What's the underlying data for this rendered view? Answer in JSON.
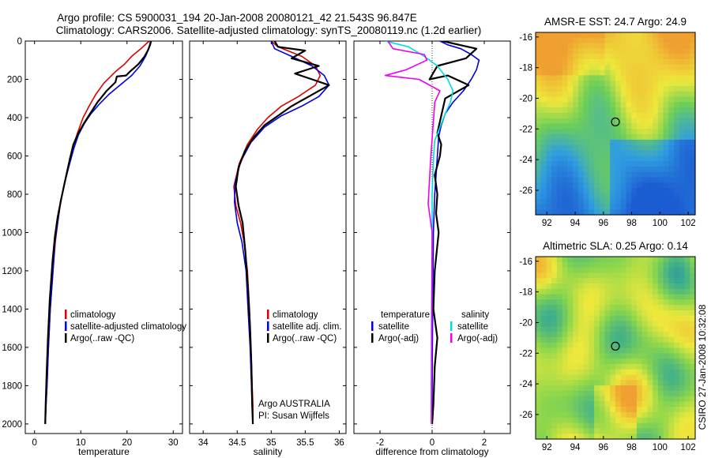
{
  "figure": {
    "title_line1": "Argo profile: CS 5900031_194 20-Jan-2008 20080121_42 21.543S 96.847E",
    "title_line2": "Climatology: CARS2006. Satellite-adjusted climatology: synTS_20080119.nc (1.2d earlier)",
    "side_label": "CSIRO 27-Jan-2008 10:32:08"
  },
  "chart_data": [
    {
      "id": "temperature",
      "type": "line",
      "xlabel": "temperature",
      "xlim": [
        -2,
        32
      ],
      "ylim": [
        2050,
        0
      ],
      "xticks": [
        0,
        10,
        20,
        30
      ],
      "yticks": [
        0,
        200,
        400,
        600,
        800,
        1000,
        1200,
        1400,
        1600,
        1800,
        2000
      ],
      "legend": {
        "position": "lower-right",
        "entries": [
          {
            "label": "climatology",
            "color": "#dd0000"
          },
          {
            "label": "satellite-adjusted climatology",
            "color": "#0000dd"
          },
          {
            "label": "Argo(..raw -QC)",
            "color": "#000000"
          }
        ]
      },
      "series": [
        {
          "name": "climatology",
          "color": "#dd0000",
          "x": [
            24.8,
            23.0,
            21.0,
            19.5,
            17.5,
            15.0,
            13.2,
            11.8,
            10.5,
            9.3,
            8.2,
            7.4,
            6.4,
            5.6,
            5.0,
            4.5,
            4.0,
            3.4,
            3.0,
            2.7,
            2.5,
            2.35
          ],
          "y": [
            0,
            40,
            80,
            120,
            160,
            220,
            280,
            340,
            400,
            480,
            560,
            650,
            750,
            850,
            950,
            1050,
            1200,
            1400,
            1600,
            1800,
            1900,
            2000
          ]
        },
        {
          "name": "satellite-adjusted climatology",
          "color": "#0000dd",
          "x": [
            25.1,
            24.7,
            24.0,
            22.8,
            21.0,
            18.5,
            16.0,
            14.0,
            12.2,
            10.8,
            9.5,
            8.5,
            7.6,
            6.5,
            5.6,
            5.0,
            4.4,
            4.0,
            3.4,
            3.0,
            2.7,
            2.5,
            2.3
          ],
          "y": [
            0,
            40,
            80,
            130,
            180,
            230,
            280,
            330,
            380,
            430,
            490,
            560,
            640,
            740,
            840,
            950,
            1050,
            1200,
            1400,
            1600,
            1800,
            1900,
            2000
          ]
        },
        {
          "name": "Argo(..raw -QC)",
          "color": "#000000",
          "x": [
            25.2,
            25.0,
            24.5,
            23.8,
            22.5,
            20.6,
            19.8,
            17.8,
            17.5,
            15.6,
            13.6,
            12.0,
            10.7,
            9.5,
            8.4,
            7.6,
            6.7,
            5.8,
            5.0,
            4.4,
            3.9,
            3.3,
            2.9,
            2.6,
            2.4,
            2.3
          ],
          "y": [
            0,
            20,
            50,
            80,
            120,
            160,
            180,
            185,
            215,
            260,
            320,
            380,
            430,
            480,
            540,
            620,
            720,
            820,
            920,
            1020,
            1150,
            1350,
            1550,
            1750,
            1900,
            2000
          ]
        }
      ]
    },
    {
      "id": "salinity",
      "type": "line",
      "xlabel": "salinity",
      "xlim": [
        33.8,
        36.1
      ],
      "ylim": [
        2050,
        0
      ],
      "xticks": [
        34,
        34.5,
        35,
        35.5,
        36
      ],
      "yticks": [
        0,
        200,
        400,
        600,
        800,
        1000,
        1200,
        1400,
        1600,
        1800,
        2000
      ],
      "legend": {
        "position": "lower-right",
        "entries": [
          {
            "label": "climatology",
            "color": "#dd0000"
          },
          {
            "label": "satellite adj. clim.",
            "color": "#0000dd"
          },
          {
            "label": "Argo(..raw -QC)",
            "color": "#000000"
          }
        ]
      },
      "annotation": [
        "Argo AUSTRALIA",
        "PI: Susan Wijffels"
      ],
      "series": [
        {
          "name": "climatology",
          "color": "#dd0000",
          "x": [
            35.0,
            35.1,
            35.45,
            35.65,
            35.72,
            35.65,
            35.4,
            35.15,
            34.95,
            34.8,
            34.65,
            34.53,
            34.45,
            34.48,
            34.55,
            34.6,
            34.65,
            34.68,
            34.7,
            34.72,
            34.73,
            34.73
          ],
          "y": [
            0,
            30,
            80,
            130,
            180,
            230,
            290,
            340,
            400,
            460,
            540,
            640,
            760,
            860,
            950,
            1050,
            1200,
            1400,
            1600,
            1800,
            1900,
            2000
          ]
        },
        {
          "name": "satellite adj. clim.",
          "color": "#0000dd",
          "x": [
            35.0,
            35.05,
            35.3,
            35.6,
            35.78,
            35.85,
            35.7,
            35.45,
            35.15,
            34.9,
            34.7,
            34.55,
            34.47,
            34.46,
            34.5,
            34.57,
            34.63,
            34.66,
            34.69,
            34.71,
            34.72,
            34.73
          ],
          "y": [
            0,
            40,
            80,
            130,
            180,
            230,
            290,
            340,
            390,
            450,
            530,
            630,
            740,
            840,
            950,
            1050,
            1200,
            1400,
            1600,
            1800,
            1900,
            2000
          ]
        },
        {
          "name": "Argo(..raw -QC)",
          "color": "#000000",
          "x": [
            35.05,
            35.1,
            35.5,
            35.3,
            35.7,
            35.35,
            35.6,
            35.85,
            35.55,
            35.3,
            35.1,
            34.9,
            34.75,
            34.62,
            34.52,
            34.48,
            34.52,
            34.58,
            34.62,
            34.66,
            34.69,
            34.71,
            34.72,
            34.73
          ],
          "y": [
            0,
            30,
            50,
            90,
            130,
            170,
            200,
            230,
            290,
            340,
            390,
            440,
            500,
            570,
            660,
            760,
            860,
            950,
            1100,
            1300,
            1500,
            1700,
            1900,
            2000
          ]
        }
      ]
    },
    {
      "id": "difference",
      "type": "line",
      "xlabel": "difference from climatology",
      "xlim": [
        -3,
        3
      ],
      "ylim": [
        2050,
        0
      ],
      "xticks": [
        -2,
        0,
        2
      ],
      "yticks": [
        0,
        200,
        400,
        600,
        800,
        1000,
        1200,
        1400,
        1600,
        1800,
        2000
      ],
      "zero_line": true,
      "legend": {
        "position": "lower",
        "groups": [
          {
            "header": "temperature",
            "entries": [
              {
                "label": "satellite",
                "color": "#0000dd"
              },
              {
                "label": "Argo(-adj)",
                "color": "#000000"
              }
            ]
          },
          {
            "header": "salinity",
            "entries": [
              {
                "label": "satellite",
                "color": "#00dddd"
              },
              {
                "label": "Argo(-adj)",
                "color": "#ee00ee"
              }
            ]
          }
        ]
      },
      "series": [
        {
          "name": "temperature satellite",
          "color": "#0000dd",
          "x": [
            0.3,
            0.6,
            1.1,
            1.5,
            1.8,
            1.7,
            1.5,
            1.2,
            0.8,
            0.5,
            0.35,
            0.25,
            0.2,
            0.15,
            0.1,
            0.05,
            0.02,
            0.0,
            0.0
          ],
          "y": [
            0,
            20,
            40,
            70,
            100,
            150,
            200,
            260,
            320,
            380,
            440,
            500,
            600,
            700,
            800,
            1000,
            1400,
            1800,
            2000
          ]
        },
        {
          "name": "temperature Argo(-adj)",
          "color": "#000000",
          "x": [
            0.4,
            1.7,
            1.3,
            0.2,
            -0.1,
            0.6,
            1.4,
            0.5,
            0.4,
            0.3,
            0.2,
            0.35,
            0.3,
            0.1,
            0.2,
            0.15,
            0.25,
            0.1,
            0.05,
            0.2,
            0.1,
            0.05,
            0.0
          ],
          "y": [
            0,
            40,
            90,
            130,
            200,
            180,
            230,
            300,
            360,
            420,
            480,
            540,
            600,
            700,
            800,
            900,
            1000,
            1200,
            1400,
            1550,
            1700,
            1900,
            2000
          ]
        },
        {
          "name": "salinity satellite",
          "color": "#00dddd",
          "x": [
            -1.8,
            -0.9,
            -0.3,
            0.2,
            0.6,
            0.8,
            0.7,
            0.5,
            0.3,
            0.1,
            0.05,
            0.0,
            0.0,
            -0.02,
            -0.03
          ],
          "y": [
            0,
            30,
            80,
            130,
            200,
            260,
            320,
            380,
            450,
            520,
            620,
            800,
            1200,
            1600,
            2000
          ]
        },
        {
          "name": "salinity Argo(-adj)",
          "color": "#ee00ee",
          "x": [
            -1.7,
            -1.5,
            -0.3,
            -0.2,
            -1.0,
            -1.8,
            -0.5,
            0.3,
            0.1,
            0.05,
            -0.05,
            -0.15,
            0.0,
            -0.02,
            -0.03
          ],
          "y": [
            0,
            40,
            70,
            100,
            150,
            180,
            200,
            260,
            320,
            420,
            600,
            850,
            1000,
            1500,
            2000
          ]
        }
      ]
    },
    {
      "id": "sst_map",
      "type": "heatmap",
      "title": "AMSR-E SST: 24.7 Argo: 24.9",
      "xlim": [
        91.2,
        102.5
      ],
      "ylim": [
        -27.6,
        -15.7
      ],
      "xticks": [
        92,
        94,
        96,
        98,
        100,
        102
      ],
      "yticks": [
        -16,
        -18,
        -20,
        -22,
        -24,
        -26
      ],
      "marker": {
        "x": 96.85,
        "y": -21.54
      },
      "colors": {
        "warm": "#f0a030",
        "mid": "#6ccf58",
        "cool": "#2f9de0"
      }
    },
    {
      "id": "sla_map",
      "type": "heatmap",
      "title": "Altimetric SLA: 0.25 Argo: 0.14",
      "xlim": [
        91.2,
        102.5
      ],
      "ylim": [
        -27.6,
        -15.7
      ],
      "xticks": [
        92,
        94,
        96,
        98,
        100,
        102
      ],
      "yticks": [
        -16,
        -18,
        -20,
        -22,
        -24,
        -26
      ],
      "marker": {
        "x": 96.85,
        "y": -21.54
      },
      "colors": {
        "warm": "#f0a030",
        "mid": "#8ad64c",
        "cool": "#3cae8c"
      }
    }
  ]
}
